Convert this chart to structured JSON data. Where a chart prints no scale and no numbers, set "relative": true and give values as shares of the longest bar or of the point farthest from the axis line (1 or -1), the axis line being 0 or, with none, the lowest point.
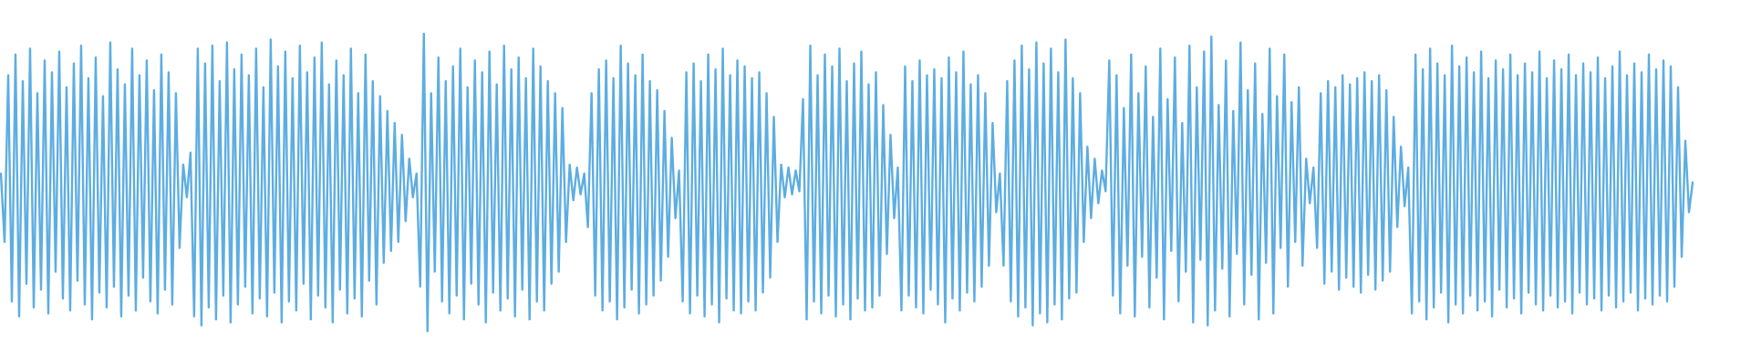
{
  "chart_data": {
    "type": "line",
    "relative": true,
    "marker": "none",
    "tick_labels": false,
    "categories": [
      null,
      null,
      null,
      null,
      null,
      null,
      null,
      null,
      null,
      null,
      null,
      null,
      null,
      null,
      null,
      null,
      null,
      null,
      null,
      null,
      null,
      null,
      null,
      null,
      null,
      null,
      null,
      null,
      null,
      null,
      null,
      null,
      null,
      null,
      null,
      null,
      null,
      null,
      null,
      null,
      null,
      null,
      null,
      null,
      null,
      null,
      null,
      null,
      null,
      null,
      null,
      null,
      null,
      null,
      null,
      null,
      null,
      null,
      null,
      null,
      null,
      null,
      null,
      null,
      null,
      null,
      null,
      null,
      null,
      null,
      null,
      null,
      null,
      null,
      null,
      null,
      null,
      null,
      null,
      null,
      null,
      null,
      null,
      null,
      null,
      null,
      null,
      null,
      null,
      null,
      null,
      null,
      null,
      null,
      null,
      null,
      null,
      null,
      null,
      null,
      null,
      null,
      null,
      null,
      null,
      null,
      null,
      null,
      null,
      null,
      null,
      null,
      null,
      null,
      null,
      null,
      null,
      null,
      null,
      null,
      null,
      null,
      null,
      null,
      null,
      null,
      null,
      null,
      null,
      null,
      null,
      null,
      null,
      null,
      null,
      null,
      null,
      null,
      null,
      null,
      null,
      null,
      null,
      null,
      null,
      null,
      null,
      null,
      null,
      null,
      null,
      null,
      null,
      null,
      null,
      null,
      null,
      null,
      null,
      null,
      null,
      null,
      null,
      null,
      null,
      null,
      null,
      null,
      null,
      null,
      null,
      null,
      null,
      null,
      null,
      null,
      null,
      null,
      null,
      null,
      null,
      null,
      null,
      null,
      null,
      null,
      null,
      null,
      null,
      null,
      null,
      null,
      null,
      null,
      null,
      null,
      null,
      null,
      null,
      null,
      null,
      null,
      null,
      null,
      null,
      null,
      null,
      null,
      null,
      null,
      null,
      null,
      null,
      null,
      null,
      null,
      null,
      null,
      null,
      null,
      null,
      null,
      null,
      null,
      null,
      null,
      null,
      null,
      null,
      null,
      null,
      null,
      null,
      null,
      null,
      null,
      null,
      null,
      null,
      null,
      null,
      null,
      null,
      null,
      null,
      null,
      null,
      null,
      null,
      null,
      null,
      null,
      null,
      null,
      null,
      null,
      null,
      null,
      null,
      null,
      null,
      null,
      null,
      null,
      null,
      null,
      null,
      null,
      null,
      null,
      null,
      null,
      null,
      null,
      null,
      null,
      null,
      null,
      null,
      null,
      null,
      null,
      null,
      null,
      null,
      null,
      null,
      null,
      null,
      null,
      null,
      null,
      null,
      null,
      null,
      null,
      null,
      null,
      null,
      null,
      null,
      null,
      null,
      null,
      null,
      null,
      null,
      null,
      null,
      null,
      null,
      null,
      null,
      null,
      null,
      null,
      null,
      null,
      null,
      null,
      null,
      null,
      null,
      null,
      null,
      null,
      null,
      null,
      null,
      null,
      null,
      null,
      null,
      null,
      null,
      null,
      null,
      null,
      null,
      null,
      null,
      null,
      null,
      null,
      null,
      null,
      null,
      null,
      null,
      null,
      null,
      null,
      null,
      null,
      null,
      null,
      null,
      null,
      null,
      null,
      null,
      null,
      null,
      null,
      null,
      null,
      null,
      null,
      null,
      null,
      null,
      null,
      null,
      null,
      null,
      null,
      null,
      null,
      null,
      null,
      null,
      null,
      null,
      null,
      null,
      null,
      null,
      null,
      null,
      null,
      null,
      null,
      null,
      null,
      null,
      null,
      null,
      null,
      null,
      null,
      null,
      null,
      null,
      null,
      null,
      null,
      null,
      null,
      null,
      null,
      null,
      null,
      null,
      null,
      null,
      null,
      null,
      null,
      null,
      null,
      null,
      null,
      null,
      null,
      null,
      null,
      null,
      null,
      null,
      null,
      null,
      null,
      null,
      null,
      null,
      null,
      null,
      null,
      null,
      null,
      null,
      null,
      null,
      null,
      null,
      null,
      null,
      null,
      null,
      null,
      null,
      null,
      null,
      null,
      null,
      null,
      null,
      null,
      null,
      null,
      null,
      null,
      null,
      null,
      null
    ],
    "series": [
      {
        "color": "#5dade2",
        "values": [
          0.53,
          0.3,
          0.86,
          0.1,
          0.93,
          0.05,
          0.84,
          0.16,
          0.95,
          0.08,
          0.8,
          0.14,
          0.91,
          0.06,
          0.87,
          0.2,
          0.94,
          0.11,
          0.82,
          0.07,
          0.9,
          0.17,
          0.96,
          0.09,
          0.85,
          0.04,
          0.92,
          0.13,
          0.79,
          0.08,
          0.97,
          0.15,
          0.88,
          0.05,
          0.83,
          0.12,
          0.95,
          0.07,
          0.86,
          0.18,
          0.91,
          0.1,
          0.81,
          0.06,
          0.93,
          0.14,
          0.87,
          0.09,
          0.8,
          0.28,
          0.56,
          0.45,
          0.6,
          0.05,
          0.95,
          0.02,
          0.9,
          0.08,
          0.96,
          0.04,
          0.84,
          0.12,
          0.97,
          0.03,
          0.88,
          0.09,
          0.93,
          0.15,
          0.86,
          0.06,
          0.95,
          0.11,
          0.82,
          0.05,
          0.98,
          0.13,
          0.89,
          0.03,
          0.94,
          0.1,
          0.85,
          0.07,
          0.96,
          0.16,
          0.87,
          0.04,
          0.92,
          0.12,
          0.97,
          0.08,
          0.83,
          0.03,
          0.91,
          0.14,
          0.86,
          0.06,
          0.95,
          0.11,
          0.8,
          0.05,
          0.93,
          0.17,
          0.84,
          0.09,
          0.79,
          0.23,
          0.74,
          0.27,
          0.7,
          0.3,
          0.66,
          0.37,
          0.58,
          0.45,
          0.53,
          0.15,
          1.0,
          0.0,
          0.8,
          0.2,
          0.92,
          0.1,
          0.84,
          0.06,
          0.89,
          0.12,
          0.95,
          0.04,
          0.82,
          0.16,
          0.91,
          0.09,
          0.87,
          0.03,
          0.94,
          0.13,
          0.83,
          0.07,
          0.96,
          0.11,
          0.88,
          0.05,
          0.92,
          0.14,
          0.85,
          0.04,
          0.95,
          0.1,
          0.89,
          0.07,
          0.84,
          0.16,
          0.8,
          0.2,
          0.75,
          0.3,
          0.56,
          0.44,
          0.55,
          0.46,
          0.53,
          0.35,
          0.8,
          0.12,
          0.88,
          0.07,
          0.91,
          0.1,
          0.85,
          0.04,
          0.96,
          0.08,
          0.9,
          0.14,
          0.86,
          0.06,
          0.93,
          0.09,
          0.84,
          0.12,
          0.81,
          0.17,
          0.74,
          0.25,
          0.65,
          0.38,
          0.54,
          0.1,
          0.87,
          0.06,
          0.9,
          0.12,
          0.84,
          0.05,
          0.93,
          0.09,
          0.88,
          0.03,
          0.95,
          0.11,
          0.86,
          0.07,
          0.91,
          0.06,
          0.89,
          0.1,
          0.85,
          0.07,
          0.87,
          0.13,
          0.8,
          0.18,
          0.72,
          0.3,
          0.56,
          0.45,
          0.55,
          0.46,
          0.54,
          0.47,
          0.78,
          0.04,
          0.96,
          0.1,
          0.86,
          0.06,
          0.93,
          0.12,
          0.89,
          0.05,
          0.95,
          0.09,
          0.84,
          0.04,
          0.9,
          0.11,
          0.94,
          0.07,
          0.83,
          0.08,
          0.87,
          0.12,
          0.76,
          0.26,
          0.66,
          0.38,
          0.55,
          0.07,
          0.89,
          0.12,
          0.84,
          0.08,
          0.91,
          0.06,
          0.86,
          0.14,
          0.88,
          0.09,
          0.85,
          0.03,
          0.92,
          0.11,
          0.87,
          0.07,
          0.94,
          0.13,
          0.83,
          0.1,
          0.86,
          0.15,
          0.8,
          0.22,
          0.7,
          0.4,
          0.53,
          0.22,
          0.84,
          0.1,
          0.91,
          0.05,
          0.96,
          0.08,
          0.88,
          0.02,
          0.97,
          0.06,
          0.9,
          0.03,
          0.95,
          0.09,
          0.87,
          0.04,
          0.98,
          0.11,
          0.85,
          0.13,
          0.8,
          0.3,
          0.62,
          0.38,
          0.58,
          0.43,
          0.54,
          0.47,
          0.91,
          0.12,
          0.86,
          0.06,
          0.75,
          0.22,
          0.93,
          0.05,
          0.8,
          0.25,
          0.89,
          0.08,
          0.72,
          0.18,
          0.95,
          0.04,
          0.78,
          0.27,
          0.92,
          0.1,
          0.7,
          0.2,
          0.96,
          0.03,
          0.82,
          0.24,
          0.94,
          0.02,
          0.99,
          0.07,
          0.76,
          0.21,
          0.91,
          0.05,
          0.74,
          0.26,
          0.97,
          0.09,
          0.81,
          0.19,
          0.9,
          0.04,
          0.73,
          0.23,
          0.95,
          0.06,
          0.79,
          0.28,
          0.93,
          0.15,
          0.77,
          0.3,
          0.82,
          0.22,
          0.58,
          0.43,
          0.55,
          0.28,
          0.8,
          0.16,
          0.84,
          0.2,
          0.82,
          0.14,
          0.86,
          0.18,
          0.83,
          0.15,
          0.85,
          0.13,
          0.87,
          0.19,
          0.84,
          0.14,
          0.86,
          0.17,
          0.81,
          0.2,
          0.72,
          0.35,
          0.62,
          0.42,
          0.55,
          0.06,
          0.93,
          0.1,
          0.88,
          0.04,
          0.95,
          0.08,
          0.9,
          0.13,
          0.86,
          0.03,
          0.96,
          0.09,
          0.89,
          0.06,
          0.92,
          0.12,
          0.87,
          0.07,
          0.94,
          0.1,
          0.85,
          0.05,
          0.91,
          0.14,
          0.88,
          0.08,
          0.93,
          0.11,
          0.86,
          0.06,
          0.9,
          0.13,
          0.87,
          0.09,
          0.94,
          0.07,
          0.85,
          0.12,
          0.91,
          0.08,
          0.88,
          0.1,
          0.93,
          0.06,
          0.86,
          0.13,
          0.9,
          0.09,
          0.87,
          0.11,
          0.92,
          0.07,
          0.85,
          0.12,
          0.89,
          0.08,
          0.94,
          0.1,
          0.86,
          0.13,
          0.9,
          0.07,
          0.87,
          0.11,
          0.93,
          0.09,
          0.88,
          0.12,
          0.91,
          0.1,
          0.89,
          0.15,
          0.82,
          0.25,
          0.64,
          0.4,
          0.5
        ]
      }
    ]
  }
}
